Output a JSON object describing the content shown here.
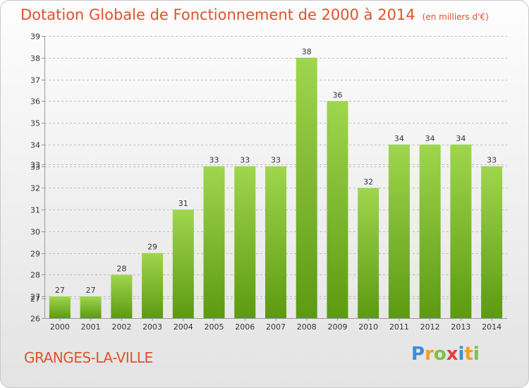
{
  "chart_data": {
    "type": "bar",
    "title": "Dotation Globale de Fonctionnement de 2000 à 2014",
    "subtitle": "(en milliers d'€)",
    "categories": [
      "2000",
      "2001",
      "2002",
      "2003",
      "2004",
      "2005",
      "2006",
      "2007",
      "2008",
      "2009",
      "2010",
      "2011",
      "2012",
      "2013",
      "2014"
    ],
    "values": [
      27,
      27,
      28,
      29,
      31,
      33,
      33,
      33,
      38,
      36,
      32,
      34,
      34,
      34,
      33
    ],
    "value_labels": [
      "27",
      "27",
      "28",
      "29",
      "31",
      "33",
      "33",
      "33",
      "38",
      "36",
      "32",
      "34",
      "34",
      "34",
      "33"
    ],
    "y_ticks": [
      "26",
      "27",
      "27",
      "28",
      "29",
      "30",
      "31",
      "32",
      "33",
      "33",
      "34",
      "35",
      "36",
      "37",
      "38",
      "39"
    ],
    "y_tick_values": [
      26,
      26.9,
      27,
      28,
      29,
      30,
      31,
      32,
      33,
      33.1,
      34,
      35,
      36,
      37,
      38,
      39
    ],
    "ylim": [
      26,
      39
    ],
    "xlabel": "",
    "ylabel": "",
    "grid": true,
    "bar_color_top": "#9fd64e",
    "bar_color_bottom": "#5c9a12"
  },
  "footer": {
    "city": "GRANGES-LA-VILLE",
    "logo_letters": [
      "P",
      "r",
      "o",
      "x",
      "i",
      "t",
      "i"
    ],
    "logo_colors": [
      "#3a8fd6",
      "#f0a020",
      "#7cc242",
      "#e04040",
      "#3a8fd6",
      "#f0a020",
      "#7cc242"
    ]
  },
  "colors": {
    "accent": "#e0522a",
    "grid": "#c0c0c0",
    "text": "#333333"
  }
}
